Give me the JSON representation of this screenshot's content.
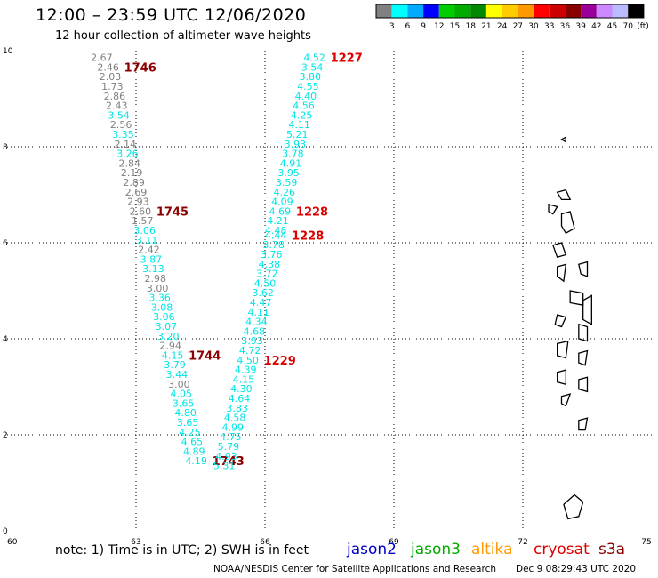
{
  "header": {
    "title": "12:00 – 23:59 UTC 12/06/2020",
    "subtitle": "12 hour collection of altimeter wave heights"
  },
  "footer": {
    "note": "note:  1) Time is in UTC;  2) SWH is in feet",
    "satellites": [
      {
        "name": "jason2",
        "color": "#0000cc"
      },
      {
        "name": "jason3",
        "color": "#00aa00"
      },
      {
        "name": "altika",
        "color": "#ff9900"
      },
      {
        "name": "cryosat",
        "color": "#dd0000"
      },
      {
        "name": "s3a",
        "color": "#880000"
      }
    ],
    "credit": "NOAA/NESDIS Center for Satellite Applications and Research",
    "generated": "Dec  9 08:29:43 UTC 2020"
  },
  "colorbar": {
    "colors": [
      "#808080",
      "#00ffff",
      "#00aaff",
      "#0000ff",
      "#00cc00",
      "#00aa00",
      "#008800",
      "#ffff00",
      "#ffcc00",
      "#ff9900",
      "#ff0000",
      "#cc0000",
      "#880000",
      "#990099",
      "#cc88ff",
      "#bbbbff",
      "#000000"
    ],
    "labels": [
      "3",
      "6",
      "9",
      "12",
      "15",
      "18",
      "21",
      "24",
      "27",
      "30",
      "33",
      "36",
      "39",
      "42",
      "45",
      "70"
    ],
    "unit": "(ft)"
  },
  "chart_data": {
    "type": "scatter",
    "xlim": [
      60,
      75
    ],
    "ylim": [
      0,
      10
    ],
    "xticks": [
      "60",
      "63",
      "66",
      "69",
      "72",
      "75"
    ],
    "yticks": [
      "0",
      "2",
      "4",
      "6",
      "8",
      "10"
    ],
    "grid": true,
    "colors": {
      "gray": "#808080",
      "cyan": "#00e5e5",
      "time_dark": "#8b0000",
      "time_red": "#dd0000"
    },
    "tracks": [
      {
        "time_color": "time_dark",
        "points": [
          {
            "lon": 62.2,
            "lat": 9.86,
            "v": "2.67",
            "c": "gray"
          },
          {
            "lon": 62.35,
            "lat": 9.66,
            "v": "2.46",
            "c": "gray"
          },
          {
            "lon": 62.4,
            "lat": 9.46,
            "v": "2.03",
            "c": "gray"
          },
          {
            "lon": 62.45,
            "lat": 9.26,
            "v": "1.73",
            "c": "gray"
          },
          {
            "lon": 62.5,
            "lat": 9.06,
            "v": "2.86",
            "c": "gray"
          },
          {
            "lon": 62.55,
            "lat": 8.86,
            "v": "2.43",
            "c": "gray"
          },
          {
            "lon": 62.6,
            "lat": 8.66,
            "v": "3.54",
            "c": "cyan"
          },
          {
            "lon": 62.65,
            "lat": 8.46,
            "v": "2.56",
            "c": "gray"
          },
          {
            "lon": 62.7,
            "lat": 8.26,
            "v": "3.35",
            "c": "cyan"
          },
          {
            "lon": 62.75,
            "lat": 8.06,
            "v": "2.14",
            "c": "gray"
          },
          {
            "lon": 62.8,
            "lat": 7.86,
            "v": "3.26",
            "c": "cyan"
          },
          {
            "lon": 62.85,
            "lat": 7.66,
            "v": "2.84",
            "c": "gray"
          },
          {
            "lon": 62.9,
            "lat": 7.46,
            "v": "2.19",
            "c": "gray"
          },
          {
            "lon": 62.95,
            "lat": 7.26,
            "v": "2.89",
            "c": "gray"
          },
          {
            "lon": 63.0,
            "lat": 7.06,
            "v": "2.69",
            "c": "gray"
          },
          {
            "lon": 63.05,
            "lat": 6.86,
            "v": "2.93",
            "c": "gray"
          },
          {
            "lon": 63.1,
            "lat": 6.66,
            "v": "2.60",
            "c": "gray"
          },
          {
            "lon": 63.15,
            "lat": 6.46,
            "v": "1.57",
            "c": "gray"
          },
          {
            "lon": 63.2,
            "lat": 6.26,
            "v": "3.06",
            "c": "cyan"
          },
          {
            "lon": 63.25,
            "lat": 6.06,
            "v": "3.11",
            "c": "cyan"
          },
          {
            "lon": 63.3,
            "lat": 5.86,
            "v": "2.42",
            "c": "gray"
          },
          {
            "lon": 63.35,
            "lat": 5.66,
            "v": "3.87",
            "c": "cyan"
          },
          {
            "lon": 63.4,
            "lat": 5.46,
            "v": "3.13",
            "c": "cyan"
          },
          {
            "lon": 63.45,
            "lat": 5.26,
            "v": "2.98",
            "c": "gray"
          },
          {
            "lon": 63.5,
            "lat": 5.06,
            "v": "3.00",
            "c": "gray"
          },
          {
            "lon": 63.55,
            "lat": 4.86,
            "v": "3.36",
            "c": "cyan"
          },
          {
            "lon": 63.6,
            "lat": 4.66,
            "v": "3.08",
            "c": "cyan"
          },
          {
            "lon": 63.65,
            "lat": 4.46,
            "v": "3.06",
            "c": "cyan"
          },
          {
            "lon": 63.7,
            "lat": 4.26,
            "v": "3.07",
            "c": "cyan"
          },
          {
            "lon": 63.75,
            "lat": 4.06,
            "v": "3.20",
            "c": "cyan"
          },
          {
            "lon": 63.8,
            "lat": 3.86,
            "v": "2.94",
            "c": "gray"
          },
          {
            "lon": 63.85,
            "lat": 3.66,
            "v": "4.15",
            "c": "cyan"
          },
          {
            "lon": 63.9,
            "lat": 3.46,
            "v": "3.79",
            "c": "cyan"
          },
          {
            "lon": 63.95,
            "lat": 3.26,
            "v": "3.44",
            "c": "cyan"
          },
          {
            "lon": 64.0,
            "lat": 3.06,
            "v": "3.00",
            "c": "gray"
          },
          {
            "lon": 64.05,
            "lat": 2.86,
            "v": "4.05",
            "c": "cyan"
          },
          {
            "lon": 64.1,
            "lat": 2.66,
            "v": "3.65",
            "c": "cyan"
          },
          {
            "lon": 64.15,
            "lat": 2.46,
            "v": "4.80",
            "c": "cyan"
          },
          {
            "lon": 64.2,
            "lat": 2.26,
            "v": "3.65",
            "c": "cyan"
          },
          {
            "lon": 64.25,
            "lat": 2.06,
            "v": "4.25",
            "c": "cyan"
          },
          {
            "lon": 64.3,
            "lat": 1.86,
            "v": "4.65",
            "c": "cyan"
          },
          {
            "lon": 64.35,
            "lat": 1.66,
            "v": "4.89",
            "c": "cyan"
          },
          {
            "lon": 64.4,
            "lat": 1.46,
            "v": "4.19",
            "c": "cyan"
          }
        ],
        "times": [
          {
            "t": "1746",
            "after": 1
          },
          {
            "t": "1745",
            "after": 16
          },
          {
            "t": "1744",
            "after": 31
          },
          {
            "t": "1743",
            "after": 42
          }
        ]
      },
      {
        "time_color": "time_red",
        "points": [
          {
            "lon": 67.15,
            "lat": 9.86,
            "v": "4.52",
            "c": "cyan"
          },
          {
            "lon": 67.1,
            "lat": 9.66,
            "v": "3.54",
            "c": "cyan"
          },
          {
            "lon": 67.05,
            "lat": 9.46,
            "v": "3.80",
            "c": "cyan"
          },
          {
            "lon": 67.0,
            "lat": 9.26,
            "v": "4.55",
            "c": "cyan"
          },
          {
            "lon": 66.95,
            "lat": 9.06,
            "v": "4.40",
            "c": "cyan"
          },
          {
            "lon": 66.9,
            "lat": 8.86,
            "v": "4.56",
            "c": "cyan"
          },
          {
            "lon": 66.85,
            "lat": 8.66,
            "v": "4.25",
            "c": "cyan"
          },
          {
            "lon": 66.8,
            "lat": 8.46,
            "v": "4.11",
            "c": "cyan"
          },
          {
            "lon": 66.75,
            "lat": 8.26,
            "v": "5.21",
            "c": "cyan"
          },
          {
            "lon": 66.7,
            "lat": 8.06,
            "v": "3.93",
            "c": "cyan"
          },
          {
            "lon": 66.65,
            "lat": 7.86,
            "v": "3.78",
            "c": "cyan"
          },
          {
            "lon": 66.6,
            "lat": 7.66,
            "v": "4.91",
            "c": "cyan"
          },
          {
            "lon": 66.55,
            "lat": 7.46,
            "v": "3.95",
            "c": "cyan"
          },
          {
            "lon": 66.5,
            "lat": 7.26,
            "v": "3.59",
            "c": "cyan"
          },
          {
            "lon": 66.45,
            "lat": 7.06,
            "v": "4.26",
            "c": "cyan"
          },
          {
            "lon": 66.4,
            "lat": 6.86,
            "v": "4.09",
            "c": "cyan"
          },
          {
            "lon": 66.35,
            "lat": 6.66,
            "v": "4.69",
            "c": "cyan"
          },
          {
            "lon": 66.3,
            "lat": 6.46,
            "v": "4.21",
            "c": "cyan"
          },
          {
            "lon": 66.25,
            "lat": 6.26,
            "v": "4.48",
            "c": "cyan"
          },
          {
            "lon": 66.25,
            "lat": 6.16,
            "v": "4.44",
            "c": "cyan"
          },
          {
            "lon": 66.2,
            "lat": 5.96,
            "v": "3.78",
            "c": "cyan"
          },
          {
            "lon": 66.15,
            "lat": 5.76,
            "v": "3.76",
            "c": "cyan"
          },
          {
            "lon": 66.1,
            "lat": 5.56,
            "v": "4.38",
            "c": "cyan"
          },
          {
            "lon": 66.05,
            "lat": 5.36,
            "v": "3.72",
            "c": "cyan"
          },
          {
            "lon": 66.0,
            "lat": 5.16,
            "v": "4.50",
            "c": "cyan"
          },
          {
            "lon": 65.95,
            "lat": 4.96,
            "v": "3.62",
            "c": "cyan"
          },
          {
            "lon": 65.9,
            "lat": 4.76,
            "v": "4.47",
            "c": "cyan"
          },
          {
            "lon": 65.85,
            "lat": 4.56,
            "v": "4.11",
            "c": "cyan"
          },
          {
            "lon": 65.8,
            "lat": 4.36,
            "v": "4.34",
            "c": "cyan"
          },
          {
            "lon": 65.75,
            "lat": 4.16,
            "v": "4.68",
            "c": "cyan"
          },
          {
            "lon": 65.7,
            "lat": 3.96,
            "v": "3.93",
            "c": "cyan"
          },
          {
            "lon": 65.65,
            "lat": 3.76,
            "v": "4.72",
            "c": "cyan"
          },
          {
            "lon": 65.6,
            "lat": 3.56,
            "v": "4.50",
            "c": "cyan"
          },
          {
            "lon": 65.55,
            "lat": 3.36,
            "v": "4.39",
            "c": "cyan"
          },
          {
            "lon": 65.5,
            "lat": 3.16,
            "v": "4.15",
            "c": "cyan"
          },
          {
            "lon": 65.45,
            "lat": 2.96,
            "v": "4.30",
            "c": "cyan"
          },
          {
            "lon": 65.4,
            "lat": 2.76,
            "v": "4.64",
            "c": "cyan"
          },
          {
            "lon": 65.35,
            "lat": 2.56,
            "v": "3.83",
            "c": "cyan"
          },
          {
            "lon": 65.3,
            "lat": 2.36,
            "v": "4.58",
            "c": "cyan"
          },
          {
            "lon": 65.25,
            "lat": 2.16,
            "v": "4.99",
            "c": "cyan"
          },
          {
            "lon": 65.2,
            "lat": 1.96,
            "v": "4.75",
            "c": "cyan"
          },
          {
            "lon": 65.15,
            "lat": 1.76,
            "v": "5.79",
            "c": "cyan"
          },
          {
            "lon": 65.1,
            "lat": 1.56,
            "v": "4.93",
            "c": "cyan"
          },
          {
            "lon": 65.05,
            "lat": 1.36,
            "v": "5.31",
            "c": "cyan"
          }
        ],
        "times": [
          {
            "t": "1227",
            "after": 0
          },
          {
            "t": "1228",
            "after": 16
          },
          {
            "t": "1228",
            "after": 19
          },
          {
            "t": "1229",
            "after": 32
          }
        ]
      }
    ],
    "islands": [
      [
        [
          72.9,
          8.15
        ],
        [
          73.0,
          8.2
        ],
        [
          73.0,
          8.1
        ],
        [
          72.9,
          8.15
        ]
      ],
      [
        [
          72.8,
          7.05
        ],
        [
          73.0,
          7.1
        ],
        [
          73.1,
          6.9
        ],
        [
          72.9,
          6.9
        ]
      ],
      [
        [
          72.6,
          6.8
        ],
        [
          72.8,
          6.75
        ],
        [
          72.7,
          6.6
        ],
        [
          72.6,
          6.65
        ]
      ],
      [
        [
          72.9,
          6.6
        ],
        [
          73.1,
          6.65
        ],
        [
          73.2,
          6.3
        ],
        [
          73.0,
          6.2
        ],
        [
          72.9,
          6.35
        ]
      ],
      [
        [
          72.7,
          5.95
        ],
        [
          72.9,
          6.0
        ],
        [
          73.0,
          5.75
        ],
        [
          72.8,
          5.7
        ]
      ],
      [
        [
          72.8,
          5.5
        ],
        [
          73.0,
          5.55
        ],
        [
          72.95,
          5.2
        ],
        [
          72.8,
          5.3
        ]
      ],
      [
        [
          73.3,
          5.55
        ],
        [
          73.5,
          5.6
        ],
        [
          73.5,
          5.3
        ],
        [
          73.35,
          5.35
        ]
      ],
      [
        [
          73.1,
          5.0
        ],
        [
          73.4,
          4.95
        ],
        [
          73.4,
          4.7
        ],
        [
          73.1,
          4.75
        ]
      ],
      [
        [
          73.4,
          4.8
        ],
        [
          73.6,
          4.9
        ],
        [
          73.6,
          4.3
        ],
        [
          73.4,
          4.4
        ]
      ],
      [
        [
          72.8,
          4.5
        ],
        [
          73.0,
          4.45
        ],
        [
          72.9,
          4.25
        ],
        [
          72.75,
          4.3
        ]
      ],
      [
        [
          73.3,
          4.3
        ],
        [
          73.5,
          4.25
        ],
        [
          73.5,
          3.95
        ],
        [
          73.3,
          4.0
        ]
      ],
      [
        [
          72.8,
          3.9
        ],
        [
          73.05,
          3.95
        ],
        [
          73.0,
          3.6
        ],
        [
          72.8,
          3.65
        ]
      ],
      [
        [
          73.3,
          3.7
        ],
        [
          73.5,
          3.75
        ],
        [
          73.45,
          3.45
        ],
        [
          73.3,
          3.5
        ]
      ],
      [
        [
          72.8,
          3.3
        ],
        [
          73.0,
          3.35
        ],
        [
          73.0,
          3.05
        ],
        [
          72.8,
          3.1
        ]
      ],
      [
        [
          73.3,
          3.15
        ],
        [
          73.5,
          3.2
        ],
        [
          73.5,
          2.9
        ],
        [
          73.3,
          2.95
        ]
      ],
      [
        [
          72.9,
          2.8
        ],
        [
          73.1,
          2.85
        ],
        [
          73.0,
          2.6
        ],
        [
          72.9,
          2.65
        ]
      ],
      [
        [
          73.3,
          2.3
        ],
        [
          73.5,
          2.35
        ],
        [
          73.45,
          2.1
        ],
        [
          73.3,
          2.1
        ]
      ],
      [
        [
          72.95,
          0.55
        ],
        [
          73.2,
          0.75
        ],
        [
          73.4,
          0.6
        ],
        [
          73.3,
          0.3
        ],
        [
          73.05,
          0.25
        ]
      ]
    ]
  }
}
